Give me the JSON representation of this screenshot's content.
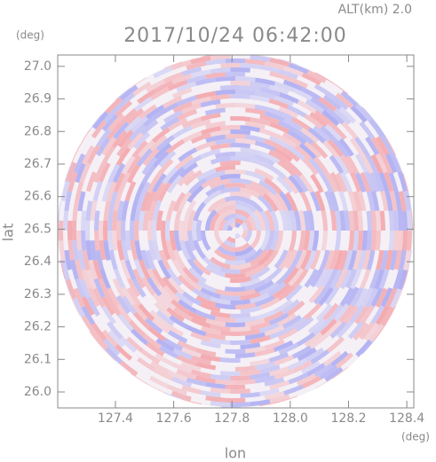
{
  "chart_data": {
    "type": "radar",
    "title": "2017/10/24 06:42:00",
    "subtitle": "ALT(km) 2.0",
    "x_label": "lon",
    "y_label": "lat",
    "x_unit": "(deg)",
    "y_unit": "(deg)",
    "xlim": [
      127.202,
      128.424
    ],
    "ylim": [
      25.951,
      27.035
    ],
    "xticks": [
      127.4,
      127.6,
      127.8,
      {
        "value": 128.0,
        "label": "128.0"
      },
      128.2,
      128.4
    ],
    "yticks": [
      {
        "value": 26.0,
        "label": "26.0"
      },
      26.1,
      26.2,
      26.3,
      26.4,
      26.5,
      26.6,
      26.7,
      26.8,
      26.9,
      {
        "value": 27.0,
        "label": "27.0"
      }
    ],
    "colors": [
      "#f3a3a8",
      "#a9a9f2"
    ]
  }
}
